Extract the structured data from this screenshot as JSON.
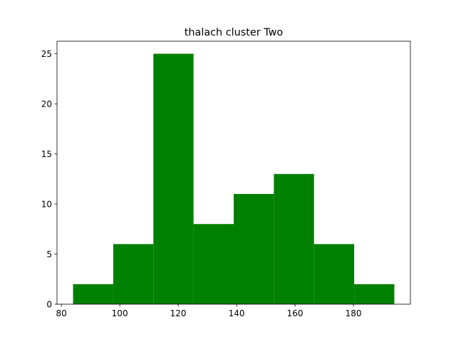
{
  "chart_data": {
    "type": "bar",
    "title": "thalach cluster Two",
    "xlabel": "",
    "ylabel": "",
    "bins": [
      {
        "start": 84.0,
        "end": 97.75,
        "count": 2
      },
      {
        "start": 97.75,
        "end": 111.5,
        "count": 6
      },
      {
        "start": 111.5,
        "end": 125.25,
        "count": 25
      },
      {
        "start": 125.25,
        "end": 139.0,
        "count": 8
      },
      {
        "start": 139.0,
        "end": 152.75,
        "count": 11
      },
      {
        "start": 152.75,
        "end": 166.5,
        "count": 13
      },
      {
        "start": 166.5,
        "end": 180.25,
        "count": 6
      },
      {
        "start": 180.25,
        "end": 194.0,
        "count": 2
      }
    ],
    "xlim": [
      78.5,
      199.5
    ],
    "ylim": [
      0,
      26.25
    ],
    "xticks": [
      80,
      100,
      120,
      140,
      160,
      180
    ],
    "yticks": [
      0,
      5,
      10,
      15,
      20,
      25
    ],
    "xtick_labels": [
      "80",
      "100",
      "120",
      "140",
      "160",
      "180"
    ],
    "ytick_labels": [
      "0",
      "5",
      "10",
      "15",
      "20",
      "25"
    ],
    "grid": false,
    "legend": "none",
    "colors": {
      "bar": "#008000"
    }
  }
}
